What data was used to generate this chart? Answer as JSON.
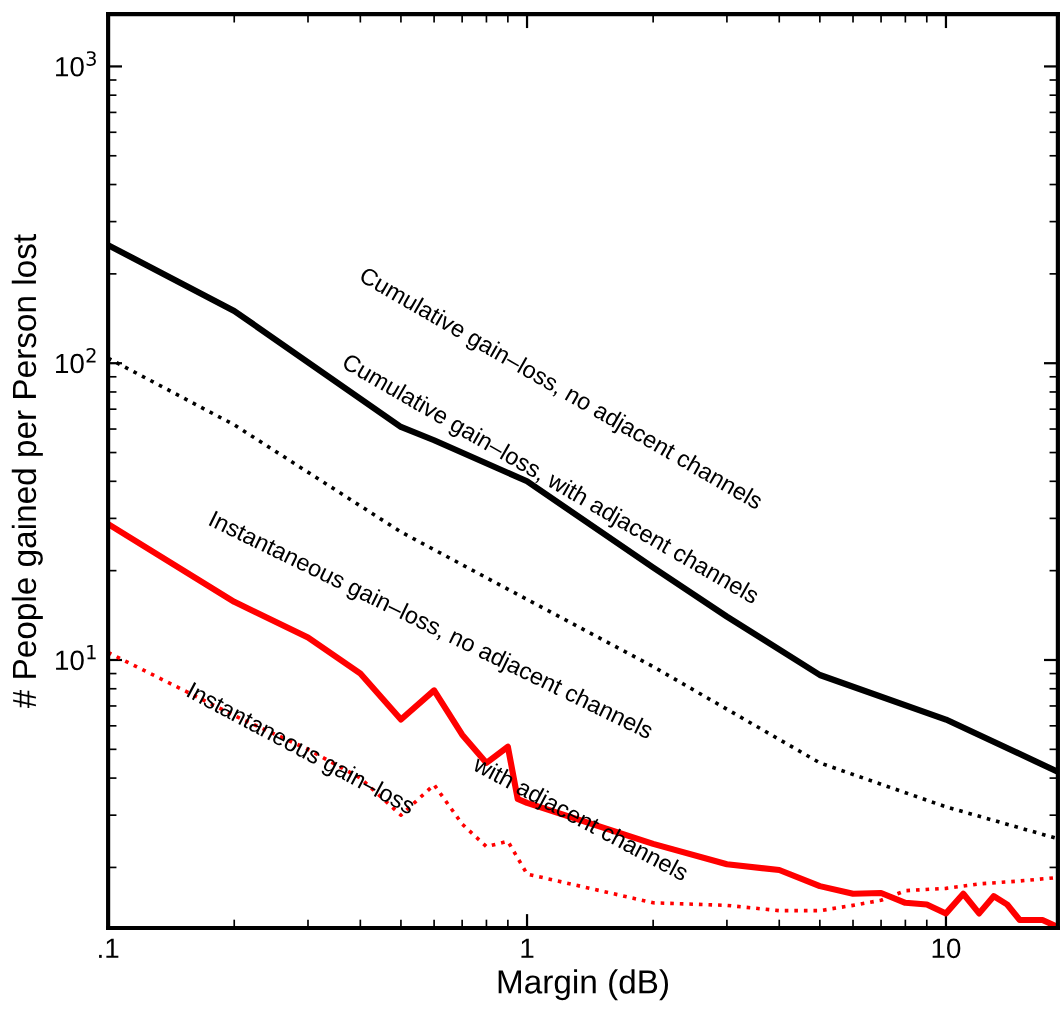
{
  "chart_data": {
    "type": "line",
    "xlabel": "Margin (dB)",
    "ylabel": "# People gained per Person lost",
    "log": "xy",
    "xlim": [
      0.1,
      18.5
    ],
    "ylim": [
      1.25,
      1500
    ],
    "xticks": [
      {
        "value": 0.1,
        "label": ".1"
      },
      1,
      10
    ],
    "yticks": [
      {
        "value": 10,
        "label": "10$^{1}$"
      },
      {
        "value": 100,
        "label": "10$^{2}$"
      },
      {
        "value": 1000,
        "label": "10$^{3}$"
      }
    ],
    "grid": false,
    "marker": "none",
    "series": [
      {
        "color": "#000000",
        "line_style": "solid",
        "x": [
          0.1,
          0.2,
          0.5,
          0.6,
          1,
          2,
          3,
          5,
          10,
          18.5
        ],
        "values": [
          250,
          150,
          61,
          55,
          40,
          20.5,
          14,
          8.9,
          6.3,
          4.2
        ]
      },
      {
        "color": "#000000",
        "line_style": "dotted",
        "x": [
          0.1,
          0.2,
          0.5,
          1,
          2,
          5,
          10,
          18.5
        ],
        "values": [
          104,
          62,
          27,
          16,
          9.5,
          4.5,
          3.2,
          2.5
        ]
      },
      {
        "color": "#ff0000",
        "line_style": "solid",
        "x": [
          0.1,
          0.2,
          0.3,
          0.4,
          0.5,
          0.6,
          0.7,
          0.8,
          0.9,
          0.95,
          1,
          2,
          3,
          4,
          5,
          6,
          7,
          8,
          9,
          10,
          11,
          12,
          13,
          14,
          15,
          17,
          18.5
        ],
        "values": [
          28.7,
          15.7,
          11.9,
          9.0,
          6.3,
          7.9,
          5.6,
          4.5,
          5.1,
          3.4,
          3.3,
          2.4,
          2.05,
          1.96,
          1.73,
          1.63,
          1.64,
          1.52,
          1.5,
          1.4,
          1.63,
          1.4,
          1.6,
          1.5,
          1.33,
          1.33,
          1.26
        ]
      },
      {
        "color": "#ff0000",
        "line_style": "dotted",
        "x": [
          0.1,
          0.2,
          0.3,
          0.4,
          0.5,
          0.6,
          0.7,
          0.8,
          0.9,
          1,
          2,
          3,
          4,
          5,
          6,
          7,
          8,
          10,
          12,
          15,
          18.5
        ],
        "values": [
          10.6,
          6.5,
          5,
          4,
          3.0,
          3.8,
          2.8,
          2.35,
          2.45,
          1.9,
          1.52,
          1.49,
          1.43,
          1.43,
          1.49,
          1.55,
          1.67,
          1.7,
          1.76,
          1.8,
          1.85
        ]
      }
    ],
    "annotations": [
      "Cumulative gain–loss, no adjacent channels",
      "Cumulative gain–loss, with adjacent channels",
      "Instantaneous gain–loss, no adjacent channels",
      "Instantaneous gain–loss",
      "with adjacent channels"
    ]
  }
}
